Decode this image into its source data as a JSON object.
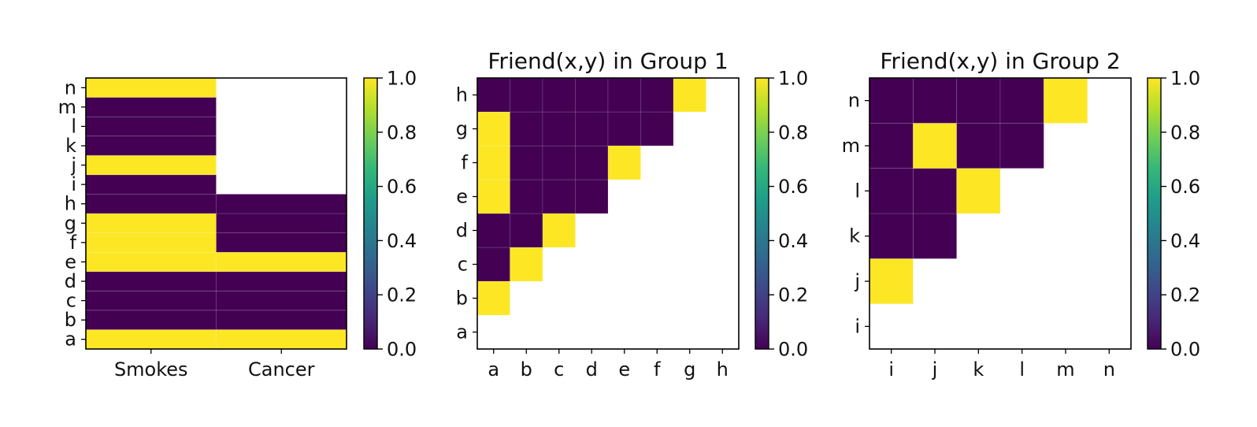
{
  "colors": {
    "low": "#440154",
    "high": "#fde725",
    "colormap": [
      "#440154",
      "#482878",
      "#3e4989",
      "#31688e",
      "#26828e",
      "#1f9e89",
      "#35b779",
      "#6ece58",
      "#b5de2b",
      "#fde725"
    ]
  },
  "chart_data": [
    {
      "type": "heatmap",
      "title": "",
      "x_categories": [
        "Smokes",
        "Cancer"
      ],
      "y_categories": [
        "a",
        "b",
        "c",
        "d",
        "e",
        "f",
        "g",
        "h",
        "i",
        "j",
        "k",
        "l",
        "m",
        "n"
      ],
      "columns": [
        [
          1,
          0,
          0,
          0,
          1,
          1,
          1,
          0,
          0,
          1,
          0,
          0,
          0,
          1
        ],
        [
          1,
          0,
          0,
          0,
          1,
          0,
          0,
          0,
          null,
          null,
          null,
          null,
          null,
          null
        ]
      ],
      "colorbar": {
        "ticks": [
          "0.0",
          "0.2",
          "0.4",
          "0.6",
          "0.8",
          "1.0"
        ],
        "range": [
          0,
          1
        ]
      }
    },
    {
      "type": "heatmap",
      "title": "Friend(x,y) in Group 1",
      "x_categories": [
        "a",
        "b",
        "c",
        "d",
        "e",
        "f",
        "g",
        "h"
      ],
      "y_categories": [
        "a",
        "b",
        "c",
        "d",
        "e",
        "f",
        "g",
        "h"
      ],
      "rows": {
        "b": [
          1
        ],
        "c": [
          0,
          1
        ],
        "d": [
          0,
          0,
          1
        ],
        "e": [
          1,
          0,
          0,
          0
        ],
        "f": [
          1,
          0,
          0,
          0,
          1
        ],
        "g": [
          1,
          0,
          0,
          0,
          0,
          0
        ],
        "h": [
          0,
          0,
          0,
          0,
          0,
          0,
          1
        ]
      },
      "colorbar": {
        "ticks": [
          "0.0",
          "0.2",
          "0.4",
          "0.6",
          "0.8",
          "1.0"
        ],
        "range": [
          0,
          1
        ]
      }
    },
    {
      "type": "heatmap",
      "title": "Friend(x,y) in Group 2",
      "x_categories": [
        "i",
        "j",
        "k",
        "l",
        "m",
        "n"
      ],
      "y_categories": [
        "i",
        "j",
        "k",
        "l",
        "m",
        "n"
      ],
      "rows": {
        "j": [
          1
        ],
        "k": [
          0,
          0
        ],
        "l": [
          0,
          0,
          1
        ],
        "m": [
          0,
          1,
          0,
          0
        ],
        "n": [
          0,
          0,
          0,
          0,
          1
        ]
      },
      "colorbar": {
        "ticks": [
          "0.0",
          "0.2",
          "0.4",
          "0.6",
          "0.8",
          "1.0"
        ],
        "range": [
          0,
          1
        ]
      }
    }
  ]
}
